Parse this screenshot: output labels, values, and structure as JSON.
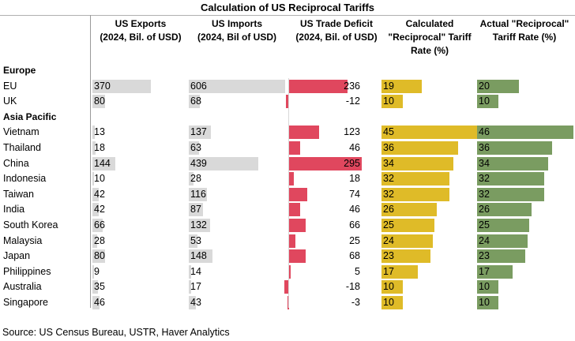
{
  "chart_data": {
    "type": "table",
    "title": "Calculation of US Reciprocal Tariffs",
    "columns": [
      "US Exports\n(2024, Bil. of USD)",
      "US Imports\n(2024, Bil of USD)",
      "US Trade Deficit\n(2024, Bil. of USD)",
      "Calculated\n\"Reciprocal\" Tariff\nRate (%)",
      "Actual \"Reciprocal\"\nTariff Rate (%)"
    ],
    "groups": [
      {
        "name": "Europe",
        "rows": [
          {
            "label": "EU",
            "exports": 370,
            "imports": 606,
            "deficit": 236,
            "calc": 19,
            "actual": 20
          },
          {
            "label": "UK",
            "exports": 80,
            "imports": 68,
            "deficit": -12,
            "calc": 10,
            "actual": 10
          }
        ]
      },
      {
        "name": "Asia Pacific",
        "rows": [
          {
            "label": "Vietnam",
            "exports": 13,
            "imports": 137,
            "deficit": 123,
            "calc": 45,
            "actual": 46
          },
          {
            "label": "Thailand",
            "exports": 18,
            "imports": 63,
            "deficit": 46,
            "calc": 36,
            "actual": 36
          },
          {
            "label": "China",
            "exports": 144,
            "imports": 439,
            "deficit": 295,
            "calc": 34,
            "actual": 34
          },
          {
            "label": "Indonesia",
            "exports": 10,
            "imports": 28,
            "deficit": 18,
            "calc": 32,
            "actual": 32
          },
          {
            "label": "Taiwan",
            "exports": 42,
            "imports": 116,
            "deficit": 74,
            "calc": 32,
            "actual": 32
          },
          {
            "label": "India",
            "exports": 42,
            "imports": 87,
            "deficit": 46,
            "calc": 26,
            "actual": 26
          },
          {
            "label": "South Korea",
            "exports": 66,
            "imports": 132,
            "deficit": 66,
            "calc": 25,
            "actual": 25
          },
          {
            "label": "Malaysia",
            "exports": 28,
            "imports": 53,
            "deficit": 25,
            "calc": 24,
            "actual": 24
          },
          {
            "label": "Japan",
            "exports": 80,
            "imports": 148,
            "deficit": 68,
            "calc": 23,
            "actual": 23
          },
          {
            "label": "Philippines",
            "exports": 9,
            "imports": 14,
            "deficit": 5,
            "calc": 17,
            "actual": 17
          },
          {
            "label": "Australia",
            "exports": 35,
            "imports": 17,
            "deficit": -18,
            "calc": 10,
            "actual": 10
          },
          {
            "label": "Singapore",
            "exports": 46,
            "imports": 43,
            "deficit": -3,
            "calc": 10,
            "actual": 10
          }
        ]
      }
    ],
    "source": "Source: US Census Bureau, USTR, Haver Analytics",
    "colors": {
      "exports": "#d9d9d9",
      "imports": "#d9d9d9",
      "deficit": "#e0475e",
      "calc": "#dfbb28",
      "actual": "#7a9c61"
    }
  }
}
